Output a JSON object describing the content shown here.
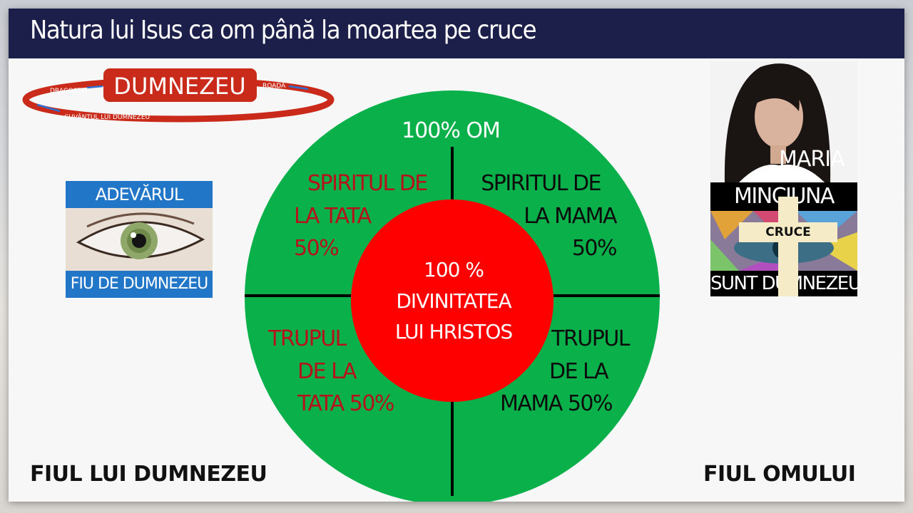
{
  "title": "Natura lui Isus ca om până la moartea pe cruce",
  "top_ring": {
    "center": "DUMNEZEU",
    "left": "DRAGOSTEA",
    "right": "ROADĂ",
    "bottom": "CUVÂNTUL LUI DUMNEZEU"
  },
  "circle": {
    "top_label": "100% OM",
    "center_lines": [
      "100 %",
      "DIVINITATEA",
      "LUI HRISTOS"
    ],
    "quadrants": {
      "top_left": [
        "SPIRITUL DE",
        "LA TATA",
        "50%"
      ],
      "top_right": [
        "SPIRITUL DE",
        "LA MAMA",
        "50%"
      ],
      "bottom_left": [
        "TRUPUL",
        "DE LA",
        "TATA 50%"
      ],
      "bottom_right": [
        "TRUPUL",
        "DE LA",
        "MAMA 50%"
      ]
    }
  },
  "left_card": {
    "top": "ADEVĂRUL",
    "bottom": "FIU DE DUMNEZEU"
  },
  "right_card": {
    "name": "MARIA",
    "top": "MINCIUNA",
    "cross": "CRUCE",
    "bottom": "SUNT DUMNEZEU"
  },
  "bottom": {
    "left": "FIUL LUI DUMNEZEU",
    "right": "FIUL OMULUI"
  },
  "colors": {
    "title_bar": "#1b1f4a",
    "circle_green": "#0ab14b",
    "circle_red": "#ff0000",
    "dark_red_text": "#b5121b",
    "ring_red": "#c92a1a",
    "blue_bar": "#2176c7"
  }
}
